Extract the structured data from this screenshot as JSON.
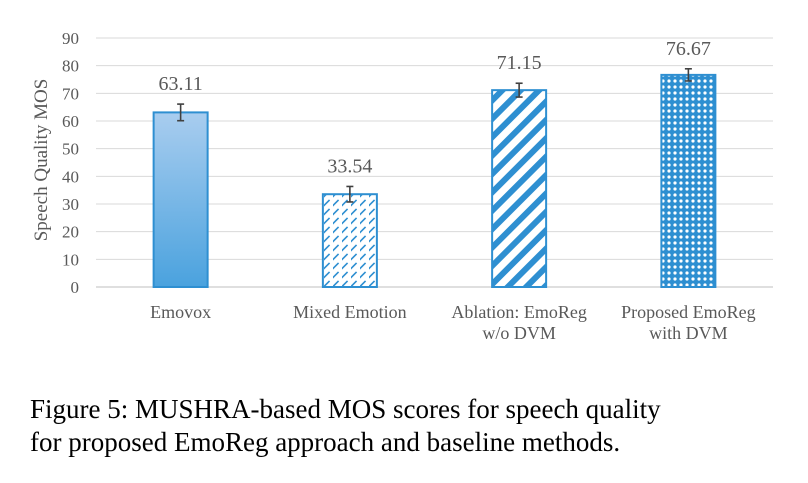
{
  "chart_data": {
    "type": "bar",
    "title": "",
    "xlabel": "",
    "ylabel": "Speech Quality MOS",
    "ylim": [
      0,
      90
    ],
    "yticks": [
      0,
      10,
      20,
      30,
      40,
      50,
      60,
      70,
      80,
      90
    ],
    "grid": true,
    "categories": [
      [
        "Emovox"
      ],
      [
        "Mixed Emotion"
      ],
      [
        "Ablation: EmoReg",
        "w/o DVM"
      ],
      [
        "Proposed EmoReg",
        "with DVM"
      ]
    ],
    "values": [
      63.11,
      33.54,
      71.15,
      76.67
    ],
    "value_labels": [
      "63.11",
      "33.54",
      "71.15",
      "76.67"
    ],
    "error": [
      3.0,
      2.8,
      2.5,
      2.2
    ],
    "fills": [
      "gradient",
      "dashed-diagonal",
      "wide-diagonal-stripes",
      "dotted-grid"
    ],
    "bar_color": "#2E8FD1",
    "gradient_colors": [
      "#A9CDEF",
      "#4AA2DE"
    ]
  },
  "caption": {
    "line1": "Figure 5: MUSHRA-based MOS scores for speech quality",
    "line2": "for proposed EmoReg approach and baseline methods."
  }
}
